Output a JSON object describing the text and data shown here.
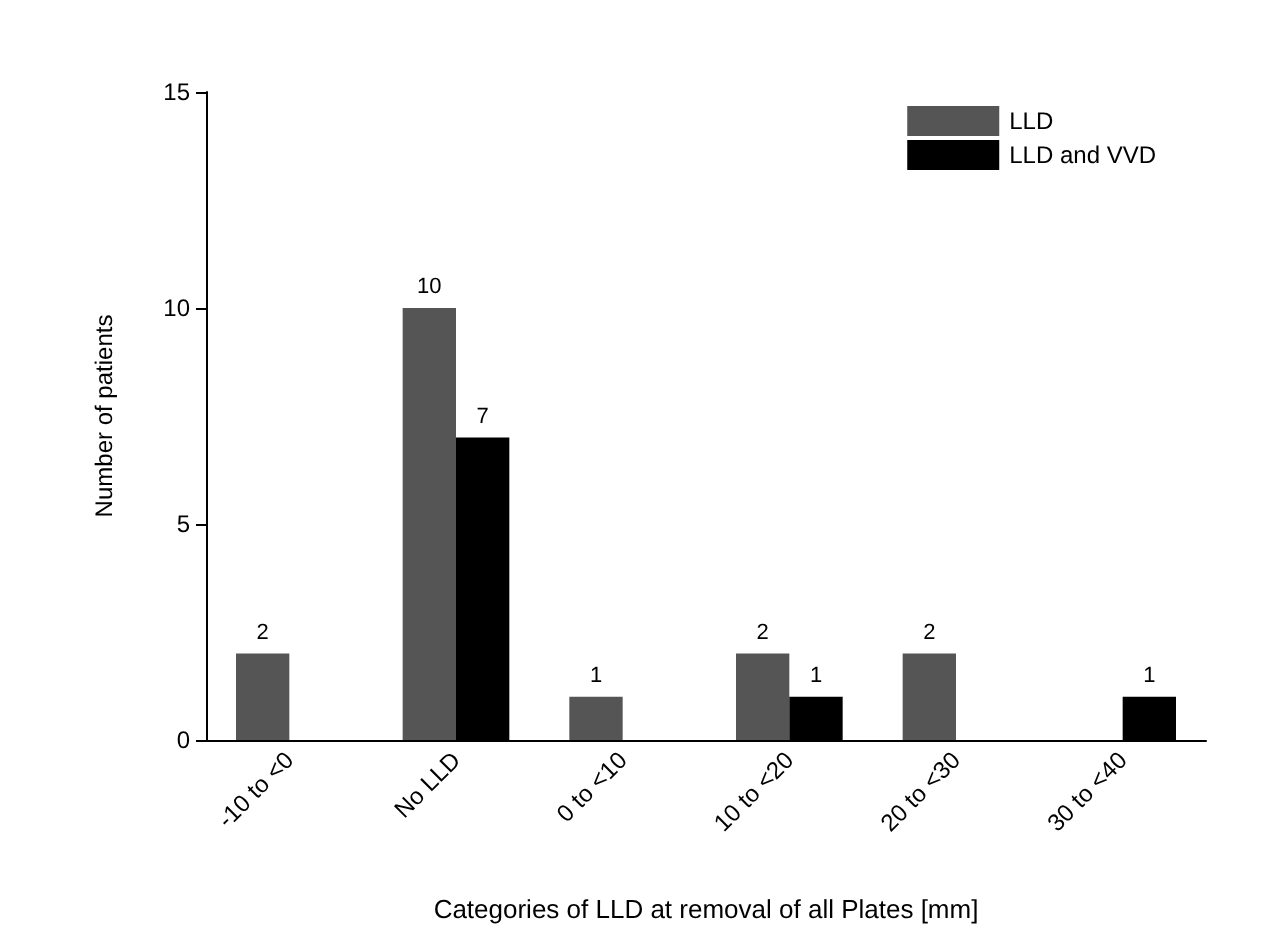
{
  "chart_data": {
    "type": "bar",
    "xlabel": "Categories of LLD at removal of all Plates [mm]",
    "ylabel": "Number of patients",
    "categories": [
      "-10 to <0",
      "No LLD",
      "0 to <10",
      "10 to <20",
      "20 to <30",
      "30 to <40"
    ],
    "series": [
      {
        "name": "LLD",
        "color": "#555555",
        "values": [
          2,
          10,
          1,
          2,
          2,
          null
        ]
      },
      {
        "name": "LLD and VVD",
        "color": "#000000",
        "values": [
          null,
          7,
          null,
          1,
          null,
          1
        ]
      }
    ],
    "ylim": [
      0,
      15
    ],
    "yticks": [
      0,
      5,
      10,
      15
    ],
    "grid": false,
    "legend": "top right",
    "data_labels": true
  }
}
